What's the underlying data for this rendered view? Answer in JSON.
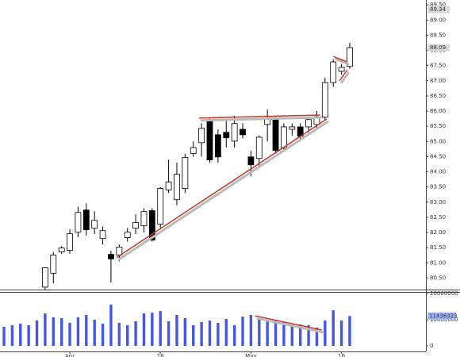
{
  "chart_data": {
    "type": "candlestick",
    "categories": [
      null,
      null,
      null,
      null,
      null,
      null,
      null,
      null,
      "Apr",
      null,
      null,
      null,
      null,
      null,
      null,
      null,
      null,
      null,
      null,
      "16",
      null,
      null,
      null,
      null,
      null,
      null,
      null,
      null,
      null,
      null,
      "May",
      null,
      null,
      null,
      null,
      null,
      null,
      null,
      null,
      null,
      null,
      "16",
      null
    ],
    "open": [
      null,
      null,
      null,
      null,
      null,
      80.2,
      80.66,
      81.36,
      81.41,
      82.01,
      82.74,
      82.14,
      81.8,
      81.28,
      81.26,
      81.83,
      82.14,
      82.22,
      82.72,
      82.27,
      83.4,
      83.08,
      83.45,
      84.6,
      84.96,
      85.69,
      85.22,
      85.3,
      85.01,
      85.4,
      84.49,
      84.44,
      85.56,
      85.74,
      84.78,
      85.4,
      85.48,
      85.48,
      85.56,
      85.8,
      86.94,
      87.31,
      87.47
    ],
    "high": [
      null,
      null,
      null,
      null,
      null,
      80.85,
      81.36,
      81.55,
      82.1,
      82.85,
      82.96,
      82.7,
      82.2,
      81.4,
      81.6,
      82.15,
      82.6,
      82.8,
      82.8,
      83.5,
      84.4,
      84.3,
      84.6,
      85.0,
      85.6,
      85.75,
      85.4,
      85.7,
      85.85,
      85.6,
      84.7,
      85.2,
      86.05,
      85.8,
      85.6,
      85.6,
      85.6,
      85.8,
      86.0,
      87.1,
      87.7,
      87.55,
      88.25
    ],
    "low": [
      null,
      null,
      null,
      null,
      null,
      80.1,
      80.32,
      81.3,
      81.3,
      81.85,
      81.9,
      81.95,
      81.6,
      80.35,
      81.05,
      81.7,
      81.95,
      82.0,
      81.7,
      82.1,
      83.3,
      82.9,
      83.3,
      84.5,
      84.5,
      84.3,
      84.3,
      84.8,
      84.8,
      85.1,
      83.85,
      84.2,
      85.0,
      84.6,
      84.7,
      85.2,
      85.0,
      85.3,
      85.4,
      85.7,
      86.8,
      87.2,
      87.4
    ],
    "close": [
      null,
      null,
      null,
      null,
      null,
      80.84,
      81.26,
      81.49,
      81.96,
      82.66,
      82.09,
      82.4,
      82.06,
      81.13,
      81.52,
      82.01,
      82.33,
      82.69,
      81.75,
      83.45,
      83.66,
      83.92,
      84.47,
      84.8,
      85.43,
      84.39,
      84.49,
      85.12,
      85.59,
      85.22,
      84.23,
      85.14,
      85.74,
      84.7,
      85.48,
      85.48,
      85.17,
      85.72,
      85.82,
      86.94,
      87.62,
      87.44,
      88.09
    ],
    "volume": [
      7300000,
      7900000,
      8500000,
      7900000,
      9700000,
      12400000,
      10900000,
      10600000,
      8800000,
      10900000,
      11800000,
      10000000,
      8500000,
      15800000,
      8800000,
      7900000,
      9400000,
      12400000,
      12700000,
      13300000,
      9400000,
      11800000,
      10600000,
      7900000,
      9100000,
      9700000,
      8800000,
      10300000,
      7900000,
      11200000,
      11800000,
      10300000,
      10000000,
      9700000,
      9100000,
      8200000,
      8200000,
      7900000,
      7000000,
      9700000,
      13600000,
      9700000,
      11436323
    ],
    "ylim": [
      80.12,
      89.66
    ],
    "yticks": [
      {
        "value": 80.5,
        "label": "80.50"
      },
      {
        "value": 81,
        "label": "81.00"
      },
      {
        "value": 81.5,
        "label": "81.50"
      },
      {
        "value": 82,
        "label": "82.00"
      },
      {
        "value": 82.5,
        "label": "82.50"
      },
      {
        "value": 83,
        "label": "83.00"
      },
      {
        "value": 83.5,
        "label": "83.50"
      },
      {
        "value": 84,
        "label": "84.00"
      },
      {
        "value": 84.5,
        "label": "84.50"
      },
      {
        "value": 85,
        "label": "85.00"
      },
      {
        "value": 85.5,
        "label": "85.50"
      },
      {
        "value": 86,
        "label": "86.00"
      },
      {
        "value": 86.5,
        "label": "86.50"
      },
      {
        "value": 87,
        "label": "87.00"
      },
      {
        "value": 87.5,
        "label": "87.50"
      },
      {
        "value": 88,
        "label": "88.00"
      },
      {
        "value": 88.5,
        "label": "88.50"
      },
      {
        "value": 89,
        "label": "89.00"
      },
      {
        "value": 89.5,
        "label": "89.50"
      }
    ],
    "price_markers": [
      89.34,
      88.09
    ],
    "y2lim": [
      0,
      20000000
    ],
    "y2ticks": [
      0,
      10000000,
      20000000
    ],
    "volume_marker": 11436323,
    "up_color": "#ffffff",
    "down_color": "#000000",
    "volume_color": "#4656e6",
    "trendline_color": "#c0392b",
    "trendlines": [
      {
        "panel": "price",
        "x": [
          13.7,
          39.2
        ],
        "y": [
          81.18,
          85.74
        ]
      },
      {
        "panel": "price",
        "x": [
          23.7,
          38.4
        ],
        "y": [
          85.77,
          85.87
        ]
      },
      {
        "panel": "price",
        "x": [
          40,
          41.7
        ],
        "y": [
          87.8,
          87.62
        ]
      },
      {
        "panel": "price",
        "x": [
          40.75,
          41.7
        ],
        "y": [
          87.0,
          87.36
        ]
      },
      {
        "panel": "volume",
        "x": [
          30.5,
          38.6
        ],
        "y": [
          11500000,
          6100000
        ]
      }
    ]
  }
}
